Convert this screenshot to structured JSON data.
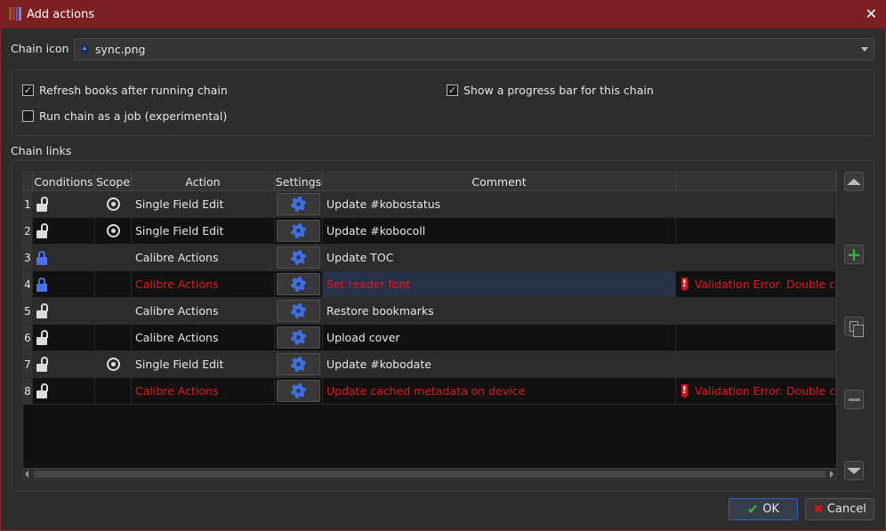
{
  "window": {
    "title": "Add actions",
    "close_icon": "close-icon",
    "app_icon": "calibre-books-icon"
  },
  "chain_icon": {
    "label": "Chain icon",
    "value": "sync.png"
  },
  "options": {
    "refresh_books": {
      "label": "Refresh books after running chain",
      "checked": true
    },
    "run_as_job": {
      "label": "Run chain as a job (experimental)",
      "checked": false
    },
    "progress_bar": {
      "label": "Show a progress bar for this chain",
      "checked": true
    }
  },
  "chain_links": {
    "label": "Chain links",
    "columns": [
      "Conditions",
      "Scope",
      "Action",
      "Settings",
      "Comment",
      ""
    ],
    "rows": [
      {
        "num": "1",
        "lock": "open",
        "scope": true,
        "action": "Single Field Edit",
        "comment": "Update #kobostatus",
        "error": "",
        "invalid": false
      },
      {
        "num": "2",
        "lock": "open",
        "scope": true,
        "action": "Single Field Edit",
        "comment": "Update #kobocoll",
        "error": "",
        "invalid": false
      },
      {
        "num": "3",
        "lock": "closed",
        "scope": false,
        "action": "Calibre Actions",
        "comment": "Update TOC",
        "error": "",
        "invalid": false
      },
      {
        "num": "4",
        "lock": "closed",
        "scope": false,
        "action": "Calibre Actions",
        "comment": "Set reader font",
        "error": "Validation Error. Double c",
        "invalid": true
      },
      {
        "num": "5",
        "lock": "open",
        "scope": false,
        "action": "Calibre Actions",
        "comment": "Restore bookmarks",
        "error": "",
        "invalid": false
      },
      {
        "num": "6",
        "lock": "open",
        "scope": false,
        "action": "Calibre Actions",
        "comment": "Upload cover",
        "error": "",
        "invalid": false
      },
      {
        "num": "7",
        "lock": "open",
        "scope": true,
        "action": "Single Field Edit",
        "comment": "Update #kobodate",
        "error": "",
        "invalid": false
      },
      {
        "num": "8",
        "lock": "open",
        "scope": false,
        "action": "Calibre Actions",
        "comment": "Update cached metadata on device",
        "error": "Validation Error. Double c",
        "invalid": true
      }
    ]
  },
  "buttons": {
    "ok": "OK",
    "cancel": "Cancel"
  },
  "colors": {
    "titlebar": "#7b1f22",
    "error": "#e8141e",
    "gear": "#3f6fe0",
    "lock_closed": "#4a72e8",
    "ok_check": "#2fb33a"
  }
}
